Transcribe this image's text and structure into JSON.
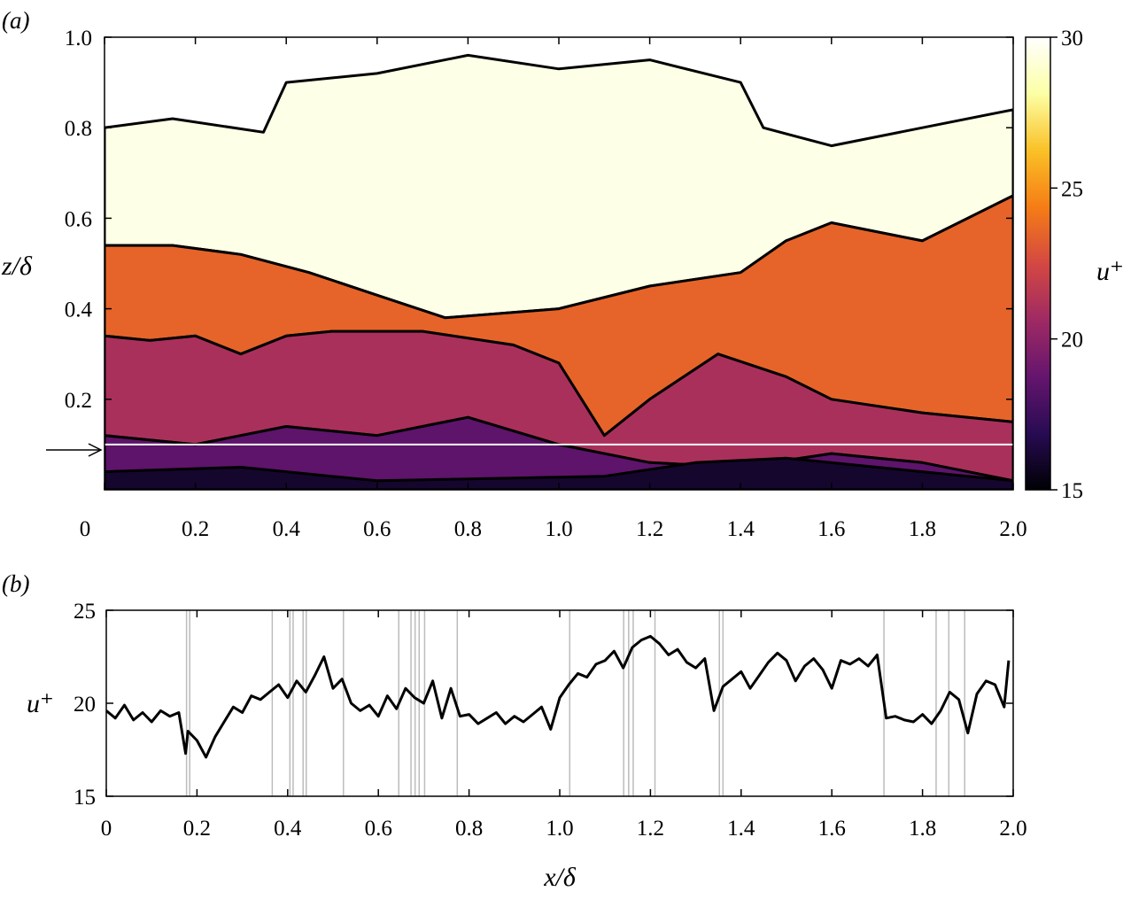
{
  "chart_data": [
    {
      "id": "a",
      "panel_label": "(a)",
      "type": "heatmap",
      "xlabel": "",
      "ylabel": "z/δ",
      "xlim": [
        0,
        2.0
      ],
      "ylim": [
        0,
        1.0
      ],
      "xticks": [
        "0",
        "0.2",
        "0.4",
        "0.6",
        "0.8",
        "1.0",
        "1.2",
        "1.4",
        "1.6",
        "1.8",
        "2.0"
      ],
      "yticks": [
        "0.2",
        "0.4",
        "0.6",
        "0.8",
        "1.0"
      ],
      "ytick_values": [
        0.2,
        0.4,
        0.6,
        0.8,
        1.0
      ],
      "colorbar": {
        "label": "u⁺",
        "range": [
          15,
          30
        ],
        "ticks": [
          "15",
          "20",
          "25",
          "30"
        ],
        "tick_values": [
          15,
          20,
          25,
          30
        ],
        "colormap": [
          "#000004",
          "#280b53",
          "#65156e",
          "#9f2a63",
          "#d44842",
          "#f57d15",
          "#fac127",
          "#fcffa4",
          "#ffffff"
        ]
      },
      "reference_line_z": 0.1,
      "regions": [
        {
          "level": 29.5,
          "boundary": [
            [
              0.0,
              0.8
            ],
            [
              0.15,
              0.82
            ],
            [
              0.35,
              0.79
            ],
            [
              0.4,
              0.9
            ],
            [
              0.6,
              0.92
            ],
            [
              0.8,
              0.96
            ],
            [
              1.0,
              0.93
            ],
            [
              1.2,
              0.95
            ],
            [
              1.4,
              0.9
            ],
            [
              1.45,
              0.8
            ],
            [
              1.6,
              0.76
            ],
            [
              1.8,
              0.8
            ],
            [
              2.0,
              0.84
            ],
            [
              2.0,
              0.65
            ],
            [
              1.8,
              0.55
            ],
            [
              1.6,
              0.59
            ],
            [
              1.5,
              0.55
            ],
            [
              1.4,
              0.48
            ],
            [
              1.2,
              0.45
            ],
            [
              1.0,
              0.4
            ],
            [
              0.75,
              0.38
            ],
            [
              0.6,
              0.43
            ],
            [
              0.45,
              0.48
            ],
            [
              0.3,
              0.52
            ],
            [
              0.15,
              0.54
            ],
            [
              0.0,
              0.54
            ]
          ]
        },
        {
          "level": 23.5,
          "boundary": [
            [
              0.0,
              0.54
            ],
            [
              0.15,
              0.54
            ],
            [
              0.3,
              0.52
            ],
            [
              0.45,
              0.48
            ],
            [
              0.6,
              0.43
            ],
            [
              0.75,
              0.38
            ],
            [
              1.0,
              0.4
            ],
            [
              1.2,
              0.45
            ],
            [
              1.4,
              0.48
            ],
            [
              1.5,
              0.55
            ],
            [
              1.6,
              0.59
            ],
            [
              1.8,
              0.55
            ],
            [
              2.0,
              0.65
            ],
            [
              2.0,
              0.15
            ],
            [
              1.8,
              0.17
            ],
            [
              1.6,
              0.2
            ],
            [
              1.5,
              0.25
            ],
            [
              1.35,
              0.3
            ],
            [
              1.2,
              0.2
            ],
            [
              1.1,
              0.12
            ],
            [
              1.0,
              0.28
            ],
            [
              0.9,
              0.32
            ],
            [
              0.7,
              0.35
            ],
            [
              0.5,
              0.35
            ],
            [
              0.4,
              0.34
            ],
            [
              0.3,
              0.3
            ],
            [
              0.2,
              0.34
            ],
            [
              0.1,
              0.33
            ],
            [
              0.0,
              0.34
            ]
          ]
        },
        {
          "level": 21.0,
          "boundary": [
            [
              0.0,
              0.34
            ],
            [
              0.1,
              0.33
            ],
            [
              0.2,
              0.34
            ],
            [
              0.3,
              0.3
            ],
            [
              0.4,
              0.34
            ],
            [
              0.5,
              0.35
            ],
            [
              0.7,
              0.35
            ],
            [
              0.9,
              0.32
            ],
            [
              1.0,
              0.28
            ],
            [
              1.1,
              0.12
            ],
            [
              1.2,
              0.2
            ],
            [
              1.35,
              0.3
            ],
            [
              1.5,
              0.25
            ],
            [
              1.6,
              0.2
            ],
            [
              1.8,
              0.17
            ],
            [
              2.0,
              0.15
            ],
            [
              2.0,
              0.02
            ],
            [
              1.8,
              0.06
            ],
            [
              1.6,
              0.08
            ],
            [
              1.4,
              0.05
            ],
            [
              1.2,
              0.06
            ],
            [
              1.0,
              0.1
            ],
            [
              0.8,
              0.16
            ],
            [
              0.6,
              0.12
            ],
            [
              0.4,
              0.14
            ],
            [
              0.2,
              0.1
            ],
            [
              0.0,
              0.12
            ]
          ]
        },
        {
          "level": 18.5,
          "boundary": [
            [
              0.0,
              0.12
            ],
            [
              0.2,
              0.1
            ],
            [
              0.4,
              0.14
            ],
            [
              0.6,
              0.12
            ],
            [
              0.8,
              0.16
            ],
            [
              1.0,
              0.1
            ],
            [
              1.2,
              0.06
            ],
            [
              1.4,
              0.05
            ],
            [
              1.6,
              0.08
            ],
            [
              1.8,
              0.06
            ],
            [
              2.0,
              0.02
            ],
            [
              2.0,
              0.0
            ],
            [
              0.0,
              0.0
            ]
          ]
        },
        {
          "level": 16.0,
          "boundary": [
            [
              0.0,
              0.04
            ],
            [
              0.3,
              0.05
            ],
            [
              0.6,
              0.02
            ],
            [
              1.1,
              0.03
            ],
            [
              1.3,
              0.06
            ],
            [
              1.5,
              0.07
            ],
            [
              1.7,
              0.05
            ],
            [
              2.0,
              0.02
            ],
            [
              2.0,
              0.0
            ],
            [
              0.0,
              0.0
            ]
          ]
        }
      ]
    },
    {
      "id": "b",
      "panel_label": "(b)",
      "type": "line",
      "xlabel": "x/δ",
      "ylabel": "u⁺",
      "xlim": [
        0,
        2.0
      ],
      "ylim": [
        15,
        25
      ],
      "xticks": [
        "0",
        "0.2",
        "0.4",
        "0.6",
        "0.8",
        "1.0",
        "1.2",
        "1.4",
        "1.6",
        "1.8",
        "2.0"
      ],
      "yticks": [
        "15",
        "20",
        "25"
      ],
      "ytick_values": [
        15,
        20,
        25
      ],
      "x": [
        0.0,
        0.02,
        0.04,
        0.06,
        0.08,
        0.1,
        0.12,
        0.14,
        0.16,
        0.175,
        0.18,
        0.2,
        0.22,
        0.24,
        0.26,
        0.28,
        0.3,
        0.32,
        0.34,
        0.36,
        0.38,
        0.4,
        0.42,
        0.44,
        0.46,
        0.48,
        0.5,
        0.52,
        0.54,
        0.56,
        0.58,
        0.6,
        0.62,
        0.64,
        0.66,
        0.68,
        0.7,
        0.72,
        0.74,
        0.76,
        0.78,
        0.8,
        0.82,
        0.84,
        0.86,
        0.88,
        0.9,
        0.92,
        0.94,
        0.96,
        0.98,
        1.0,
        1.02,
        1.04,
        1.06,
        1.08,
        1.1,
        1.12,
        1.14,
        1.16,
        1.18,
        1.2,
        1.22,
        1.24,
        1.26,
        1.28,
        1.3,
        1.32,
        1.34,
        1.36,
        1.38,
        1.4,
        1.42,
        1.44,
        1.46,
        1.48,
        1.5,
        1.52,
        1.54,
        1.56,
        1.58,
        1.6,
        1.62,
        1.64,
        1.66,
        1.68,
        1.7,
        1.72,
        1.74,
        1.76,
        1.78,
        1.8,
        1.82,
        1.84,
        1.86,
        1.88,
        1.9,
        1.92,
        1.94,
        1.96,
        1.98,
        1.99
      ],
      "values": [
        19.6,
        19.2,
        19.9,
        19.1,
        19.5,
        19.0,
        19.6,
        19.3,
        19.5,
        17.3,
        18.5,
        18.0,
        17.1,
        18.2,
        19.0,
        19.8,
        19.5,
        20.4,
        20.2,
        20.6,
        21.0,
        20.3,
        21.2,
        20.6,
        21.5,
        22.5,
        20.8,
        21.3,
        20.0,
        19.6,
        19.9,
        19.3,
        20.4,
        19.7,
        20.8,
        20.3,
        20.0,
        21.2,
        19.2,
        20.8,
        19.3,
        19.4,
        18.9,
        19.2,
        19.5,
        18.9,
        19.3,
        19.0,
        19.4,
        19.8,
        18.6,
        20.3,
        21.0,
        21.6,
        21.4,
        22.1,
        22.3,
        22.8,
        21.9,
        23.0,
        23.4,
        23.6,
        23.2,
        22.6,
        22.9,
        22.2,
        21.9,
        22.4,
        19.6,
        20.9,
        21.3,
        21.7,
        20.8,
        21.5,
        22.2,
        22.7,
        22.3,
        21.2,
        22.0,
        22.4,
        21.8,
        20.8,
        22.3,
        22.1,
        22.4,
        22.0,
        22.6,
        19.2,
        19.3,
        19.1,
        19.0,
        19.4,
        18.9,
        19.6,
        20.6,
        20.2,
        18.4,
        20.5,
        21.2,
        21.0,
        19.8,
        22.3
      ]
    }
  ],
  "panel_b_markers_x": [
    0.177,
    0.184,
    0.366,
    0.405,
    0.412,
    0.434,
    0.441,
    0.523,
    0.645,
    0.672,
    0.681,
    0.69,
    0.702,
    0.774,
    1.022,
    1.141,
    1.152,
    1.162,
    1.21,
    1.352,
    1.36,
    1.715,
    1.83,
    1.858,
    1.893
  ]
}
